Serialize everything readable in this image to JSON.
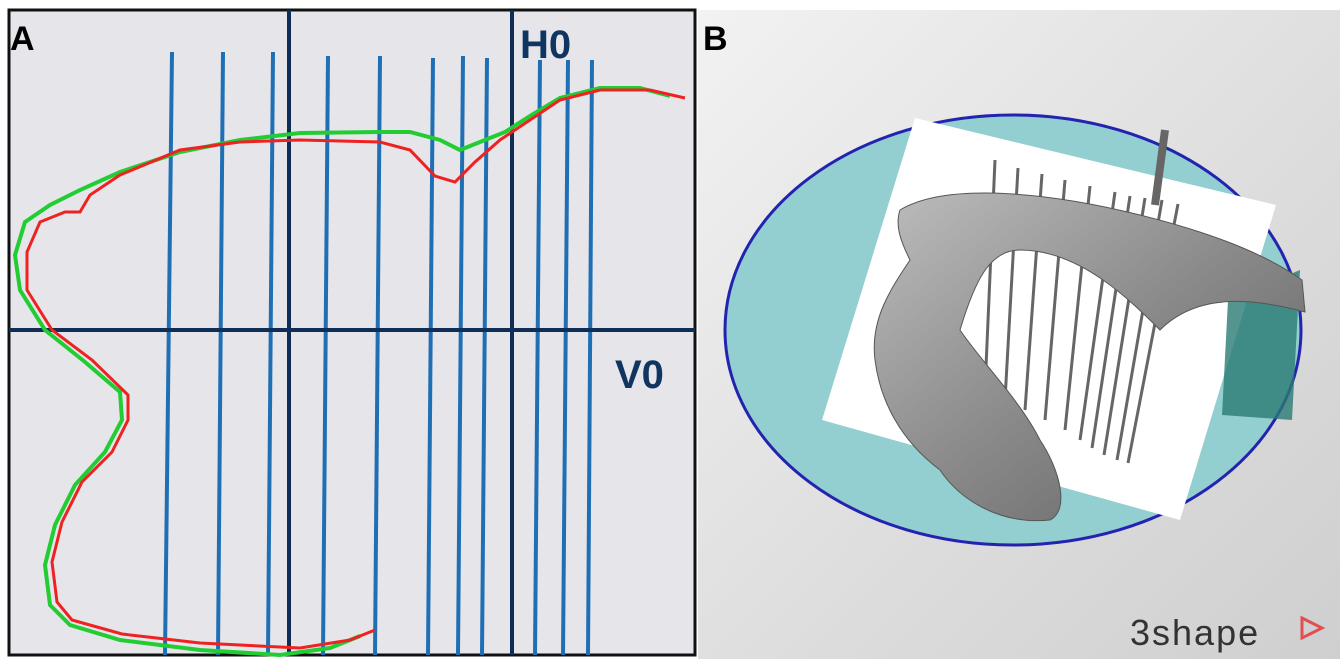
{
  "panel_a": {
    "label": "A",
    "h_label": "H0",
    "v_label": "V0"
  },
  "panel_b": {
    "label": "B",
    "logo": "3shape"
  }
}
